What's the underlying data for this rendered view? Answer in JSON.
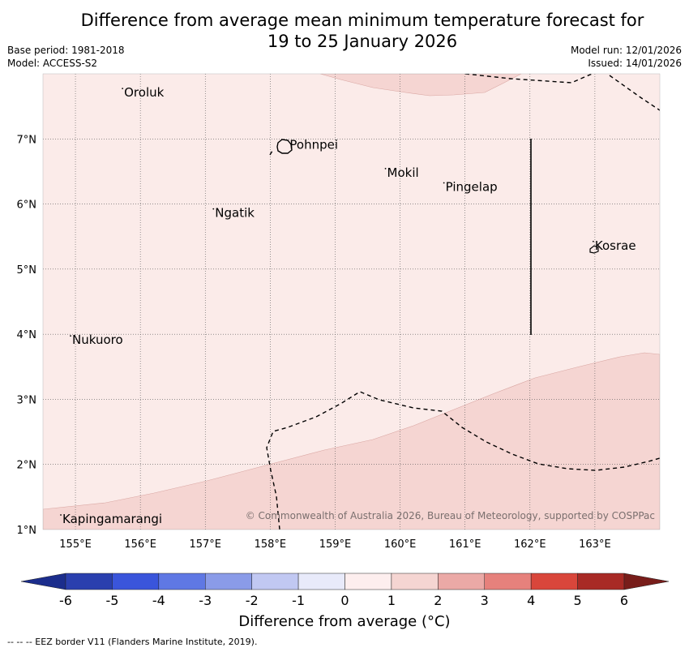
{
  "title": {
    "line1": "Difference from average mean minimum temperature forecast for",
    "line2": "19 to 25 January 2026"
  },
  "meta": {
    "base_period": "Base period: 1981-2018",
    "model": "Model: ACCESS-S2",
    "model_run": "Model run: 12/01/2026",
    "issued": "Issued: 14/01/2026"
  },
  "map": {
    "lon_range": [
      154.5,
      164.0
    ],
    "lat_range": [
      1.0,
      8.0
    ],
    "lon_ticks": [
      "155°E",
      "156°E",
      "157°E",
      "158°E",
      "159°E",
      "160°E",
      "161°E",
      "162°E",
      "163°E"
    ],
    "lat_ticks": [
      "1°N",
      "2°N",
      "3°N",
      "4°N",
      "5°N",
      "6°N",
      "7°N"
    ],
    "places": [
      {
        "name": "Oroluk",
        "lon": 155.75,
        "lat": 7.65
      },
      {
        "name": "Pohnpei",
        "lon": 158.3,
        "lat": 6.85
      },
      {
        "name": "Mokil",
        "lon": 159.8,
        "lat": 6.42
      },
      {
        "name": "Pingelap",
        "lon": 160.7,
        "lat": 6.2
      },
      {
        "name": "Ngatik",
        "lon": 157.15,
        "lat": 5.8
      },
      {
        "name": "Kosrae",
        "lon": 163.0,
        "lat": 5.3
      },
      {
        "name": "Nukuoro",
        "lon": 154.95,
        "lat": 3.85
      },
      {
        "name": "Kapingamarangi",
        "lon": 154.8,
        "lat": 1.1
      }
    ],
    "copyright": "© Commonwealth of Australia 2026, Bureau of Meteorology, supported by COSPPac",
    "colors": {
      "band_0_1": "#fbebe9",
      "band_1_2": "#f5d5d2",
      "grid": "#555555",
      "eez": "#000000"
    }
  },
  "colorbar": {
    "tick_labels": [
      "-6",
      "-5",
      "-4",
      "-3",
      "-2",
      "-1",
      "0",
      "1",
      "2",
      "3",
      "4",
      "5",
      "6"
    ],
    "colors": [
      "#1b2d8c",
      "#2a3fae",
      "#3a55db",
      "#5f78e4",
      "#8a9be8",
      "#c1c8f2",
      "#e8eafa",
      "#fdeeee",
      "#f5d5d2",
      "#eba9a6",
      "#e6817c",
      "#d9463b",
      "#a82a25",
      "#781d1a"
    ],
    "label": "Difference from average (°C)"
  },
  "footnote": "--  --  -- EEZ border V11 (Flanders Marine Institute, 2019)."
}
